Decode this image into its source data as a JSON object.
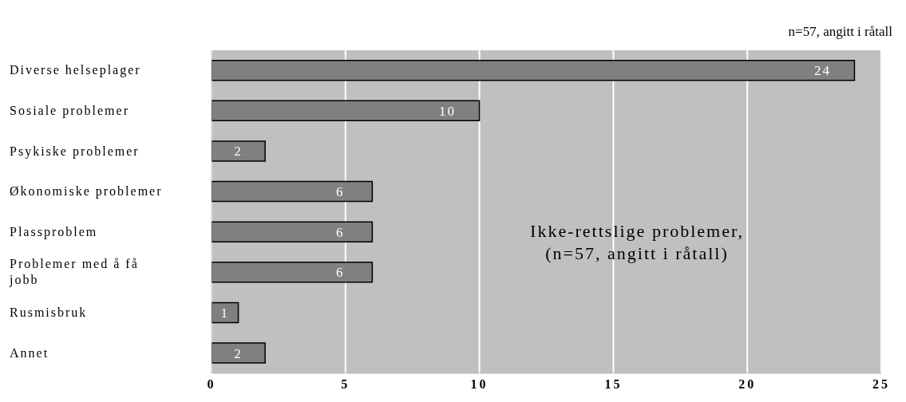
{
  "chart_data": {
    "type": "bar",
    "orientation": "horizontal",
    "subtitle": "n=57, angitt i råtall",
    "categories": [
      "Diverse helseplager",
      "Sosiale problemer",
      "Psykiske problemer",
      "Økonomiske problemer",
      "Plassproblem",
      "Problemer med å få jobb",
      "Rusmisbruk",
      "Annet"
    ],
    "values": [
      24,
      10,
      2,
      6,
      6,
      6,
      1,
      2
    ],
    "color": "#808080",
    "xlim": [
      0,
      25
    ],
    "xticks": [
      0,
      5,
      10,
      15,
      20,
      25
    ],
    "grid": "x",
    "data_labels": true,
    "legend": false,
    "annotations": [
      "Ikke-rettslige problemer,\n(n=57, angitt i råtall)"
    ]
  }
}
